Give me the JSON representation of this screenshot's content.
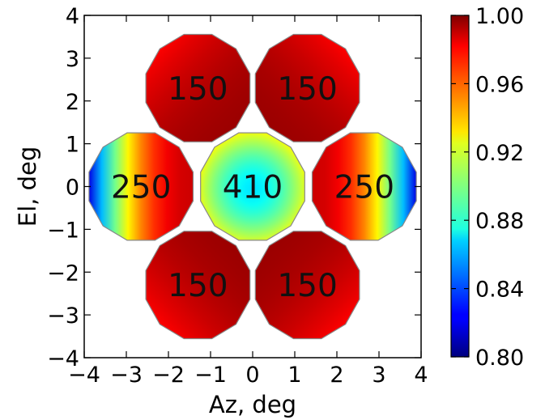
{
  "chart_data": {
    "type": "heatmap",
    "xlabel": "Az, deg",
    "ylabel": "El, deg",
    "xlim": [
      -4,
      4
    ],
    "ylim": [
      -4,
      4
    ],
    "x_ticks": [
      "−4",
      "−3",
      "−2",
      "−1",
      "0",
      "1",
      "2",
      "3",
      "4"
    ],
    "y_ticks": [
      "−4",
      "−3",
      "−2",
      "−1",
      "0",
      "1",
      "2",
      "3",
      "4"
    ],
    "x_tick_values": [
      -4,
      -3,
      -2,
      -1,
      0,
      1,
      2,
      3,
      4
    ],
    "y_tick_values": [
      -4,
      -3,
      -2,
      -1,
      0,
      1,
      2,
      3,
      4
    ],
    "colorbar": {
      "range": [
        0.8,
        1.0
      ],
      "ticks": [
        "0.80",
        "0.84",
        "0.88",
        "0.92",
        "0.96",
        "1.00"
      ],
      "tick_values": [
        0.8,
        0.84,
        0.88,
        0.92,
        0.96,
        1.0
      ],
      "colormap": "jet"
    },
    "panels": [
      {
        "label": "410",
        "center": [
          0,
          0
        ],
        "center_value": 0.87,
        "edge_value": 0.935,
        "edge_dir": [
          0,
          0
        ]
      },
      {
        "label": "150",
        "center": [
          -1.3,
          2.3
        ],
        "center_value": 0.995,
        "edge_value": 0.965,
        "edge_dir": [
          -1,
          1
        ]
      },
      {
        "label": "150",
        "center": [
          1.3,
          2.3
        ],
        "center_value": 0.995,
        "edge_value": 0.965,
        "edge_dir": [
          1,
          1
        ]
      },
      {
        "label": "250",
        "center": [
          -2.65,
          0
        ],
        "center_value": 0.985,
        "edge_value": 0.82,
        "edge_dir": [
          -1,
          0
        ]
      },
      {
        "label": "250",
        "center": [
          2.65,
          0
        ],
        "center_value": 0.985,
        "edge_value": 0.82,
        "edge_dir": [
          1,
          0
        ]
      },
      {
        "label": "150",
        "center": [
          -1.3,
          -2.3
        ],
        "center_value": 0.995,
        "edge_value": 0.965,
        "edge_dir": [
          -1,
          -1
        ]
      },
      {
        "label": "150",
        "center": [
          1.3,
          -2.3
        ],
        "center_value": 0.995,
        "edge_value": 0.965,
        "edge_dir": [
          1,
          -1
        ]
      }
    ]
  }
}
